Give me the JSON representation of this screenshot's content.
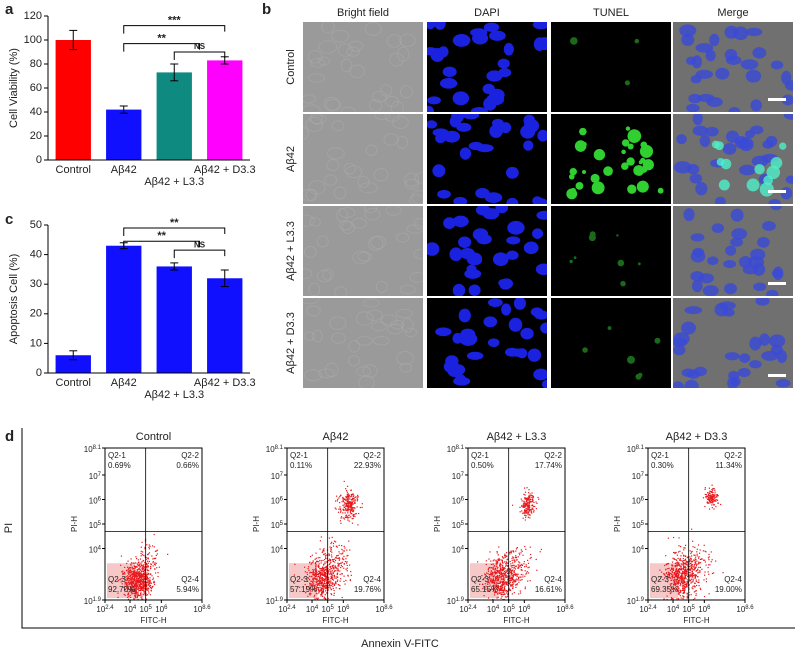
{
  "chart_data": [
    {
      "type": "bar",
      "panel_label": "a",
      "y_label": "Cell Viability (%)",
      "categories": [
        "Control",
        "Aβ42",
        "Aβ42 + L3.3",
        "Aβ42 + D3.3"
      ],
      "values": [
        100,
        42,
        73,
        83
      ],
      "errors": [
        8,
        3,
        7,
        3
      ],
      "colors": [
        "#ff0000",
        "#1010ff",
        "#0e8a80",
        "#ff00ff"
      ],
      "ylim": [
        0,
        120
      ],
      "yticks": [
        0,
        20,
        40,
        60,
        80,
        100,
        120
      ],
      "annotations": [
        "***",
        "**",
        "NS"
      ]
    },
    {
      "type": "bar",
      "panel_label": "c",
      "y_label": "Apoptosis Cell (%)",
      "categories": [
        "Control",
        "Aβ42",
        "Aβ42 + L3.3",
        "Aβ42 + D3.3"
      ],
      "values": [
        6,
        43,
        36,
        32
      ],
      "errors": [
        1.5,
        1,
        1.2,
        2.8
      ],
      "colors": [
        "#1010ff",
        "#1010ff",
        "#1010ff",
        "#1010ff"
      ],
      "ylim": [
        0,
        50
      ],
      "yticks": [
        0,
        10,
        20,
        30,
        40,
        50
      ],
      "annotations": [
        "**",
        "**",
        "NS"
      ]
    }
  ],
  "panel_b": {
    "panel_label": "b",
    "columns": [
      "Bright field",
      "DAPI",
      "TUNEL",
      "Merge"
    ],
    "rows": [
      "Control",
      "Aβ42",
      "Aβ42 + L3.3",
      "Aβ42 + D3.3"
    ]
  },
  "panel_d": {
    "panel_label": "d",
    "y_label": "PI",
    "x_label": "Annexin V-FITC",
    "plot_y_label": "PI-H",
    "plot_x_label": "FITC-H",
    "tick_base": "10",
    "xlim": [
      2.4,
      8.6
    ],
    "xticks": [
      2.4,
      4,
      5,
      6,
      8.6
    ],
    "ylim": [
      1.9,
      8.1
    ],
    "yticks": [
      1.9,
      4,
      5,
      6,
      7,
      8.1
    ],
    "plots": [
      {
        "title": "Control",
        "quadrants": [
          {
            "name": "Q2-1",
            "value": "0.69%"
          },
          {
            "name": "Q2-2",
            "value": "0.66%"
          },
          {
            "name": "Q2-3",
            "value": "92.70%"
          },
          {
            "name": "Q2-4",
            "value": "5.94%"
          }
        ]
      },
      {
        "title": "Aβ42",
        "quadrants": [
          {
            "name": "Q2-1",
            "value": "0.11%"
          },
          {
            "name": "Q2-2",
            "value": "22.93%"
          },
          {
            "name": "Q2-3",
            "value": "57.19%"
          },
          {
            "name": "Q2-4",
            "value": "19.76%"
          }
        ]
      },
      {
        "title": "Aβ42 + L3.3",
        "quadrants": [
          {
            "name": "Q2-1",
            "value": "0.50%"
          },
          {
            "name": "Q2-2",
            "value": "17.74%"
          },
          {
            "name": "Q2-3",
            "value": "65.15%"
          },
          {
            "name": "Q2-4",
            "value": "16.61%"
          }
        ]
      },
      {
        "title": "Aβ42 + D3.3",
        "quadrants": [
          {
            "name": "Q2-1",
            "value": "0.30%"
          },
          {
            "name": "Q2-2",
            "value": "11.34%"
          },
          {
            "name": "Q2-3",
            "value": "69.35%"
          },
          {
            "name": "Q2-4",
            "value": "19.00%"
          }
        ]
      }
    ]
  }
}
